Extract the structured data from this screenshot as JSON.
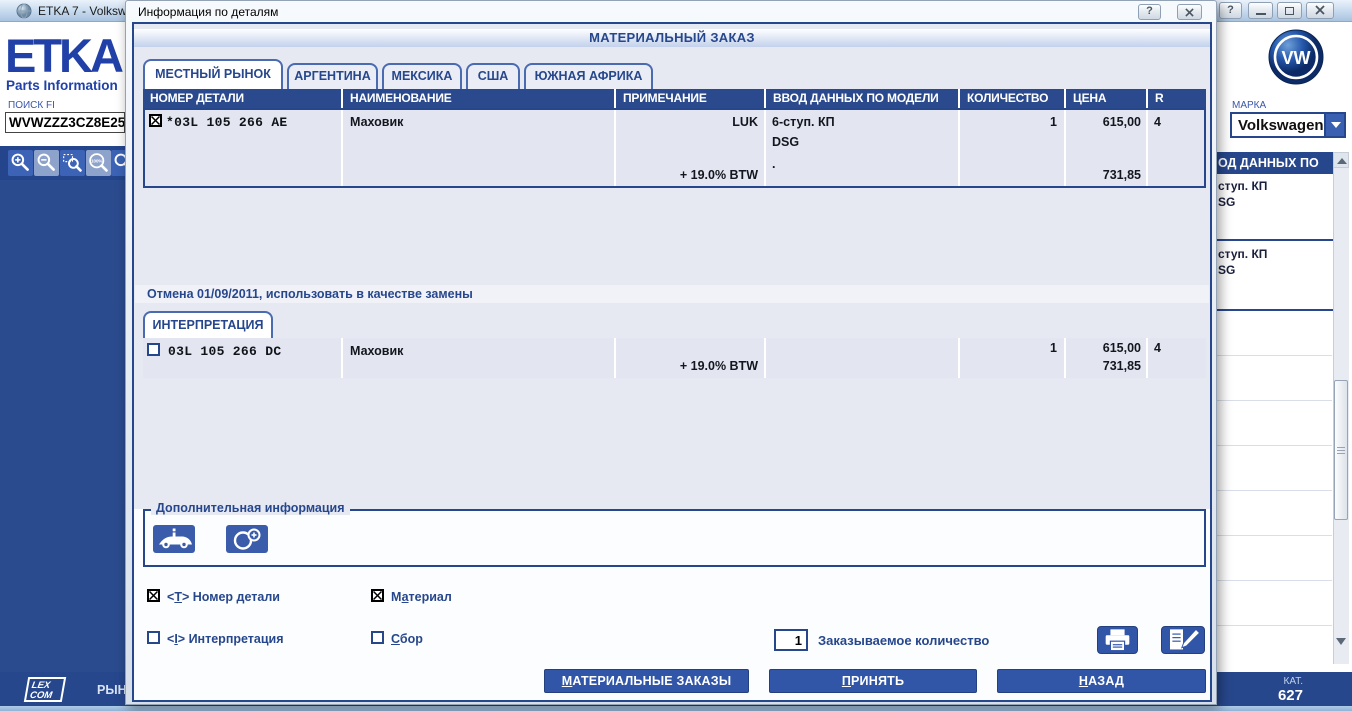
{
  "main_window": {
    "title": "ETKA 7 - Volkswa",
    "titlebar": {
      "help": "?"
    },
    "logo": {
      "title": "ETKA",
      "subtitle": "Parts Information"
    },
    "search": {
      "label": "ПОИСК FI",
      "value": "WVWZZZ3CZ8E25"
    },
    "zoom_toolbar": [
      {
        "name": "zoom-in-icon",
        "enabled": true
      },
      {
        "name": "zoom-out-icon",
        "enabled": false
      },
      {
        "name": "zoom-selection-icon",
        "enabled": true
      },
      {
        "name": "zoom-100-icon",
        "enabled": false
      },
      {
        "name": "zoom-search-icon",
        "enabled": true
      }
    ],
    "brand": {
      "label": "МАРКА",
      "value": "Volkswagen"
    },
    "right_panel": {
      "header": "ОД ДАННЫХ ПО",
      "rows": [
        {
          "line1": "ступ. КП",
          "line2": "SG"
        },
        {
          "line1": "ступ. КП",
          "line2": "SG"
        }
      ]
    },
    "statusbar": {
      "logo_line1": "LEX",
      "logo_line2": "COM",
      "market": "РЫНОК",
      "cat_label": "КАТ.",
      "cat_value": "627"
    }
  },
  "dialog": {
    "title": "Информация по деталям",
    "titlebar": {
      "help": "?"
    },
    "header": "МАТЕРИАЛЬНЫЙ ЗАКАЗ",
    "tabs": [
      "МЕСТНЫЙ РЫНОК",
      "АРГЕНТИНА",
      "МЕКСИКА",
      "США",
      "ЮЖНАЯ АФРИКА"
    ],
    "active_tab": 0,
    "columns": [
      "НОМЕР ДЕТАЛИ",
      "НАИМЕНОВАНИЕ",
      "ПРИМЕЧАНИЕ",
      "ВВОД ДАННЫХ ПО МОДЕЛИ",
      "КОЛИЧЕСТВО",
      "ЦЕНА",
      "R"
    ],
    "main_row": {
      "checked": true,
      "part_number": "*03L 105 266 AE",
      "name": "Маховик",
      "note_top": "LUK",
      "note_bottom": "+ 19.0% BTW",
      "model_lines": [
        "6-ступ. КП",
        "DSG",
        "."
      ],
      "quantity": "1",
      "price": "615,00",
      "price_total": "731,85",
      "r": "4"
    },
    "notice": "Отмена 01/09/2011, использовать в качестве замены",
    "interpretation_tab": "ИНТЕРПРЕТАЦИЯ",
    "interp_row": {
      "checked": false,
      "part_number": "03L 105 266 DC",
      "name": "Маховик",
      "note_bottom": "+ 19.0% BTW",
      "quantity": "1",
      "price": "615,00",
      "price_total": "731,85",
      "r": "4"
    },
    "additional_info": {
      "legend": "Дополнительная информация",
      "icons": [
        "vehicle-info-icon",
        "ring-add-icon"
      ]
    },
    "checkboxes": [
      {
        "label": {
          "text": "<T> Номер детали",
          "accel": 1
        },
        "checked": true
      },
      {
        "label": {
          "text": "Материал",
          "accel": 1
        },
        "checked": true
      },
      {
        "label": {
          "text": "<I> Интерпретация",
          "accel": 1
        },
        "checked": false
      },
      {
        "label": {
          "text": "Сбор",
          "accel": 0
        },
        "checked": false
      }
    ],
    "order_quantity": {
      "value": "1",
      "label": "Заказываемое количество"
    },
    "action_icons": [
      "printer-icon",
      "edit-icon"
    ],
    "buttons": [
      {
        "text": "МАТЕРИАЛЬНЫЕ ЗАКАЗЫ",
        "accel": 0
      },
      {
        "text": "ПРИНЯТЬ",
        "accel": 0
      },
      {
        "text": "НАЗАД",
        "accel": 0
      }
    ]
  },
  "colors": {
    "accent": "#27478D",
    "table_header": "#2B4A8E",
    "button_blue": "#3156A8",
    "row_bg": "#E3E6F1",
    "dialog_bg": "#E6E9F2",
    "toolbar_disabled": "#8EA3CC",
    "dark_text": "#14161E"
  }
}
